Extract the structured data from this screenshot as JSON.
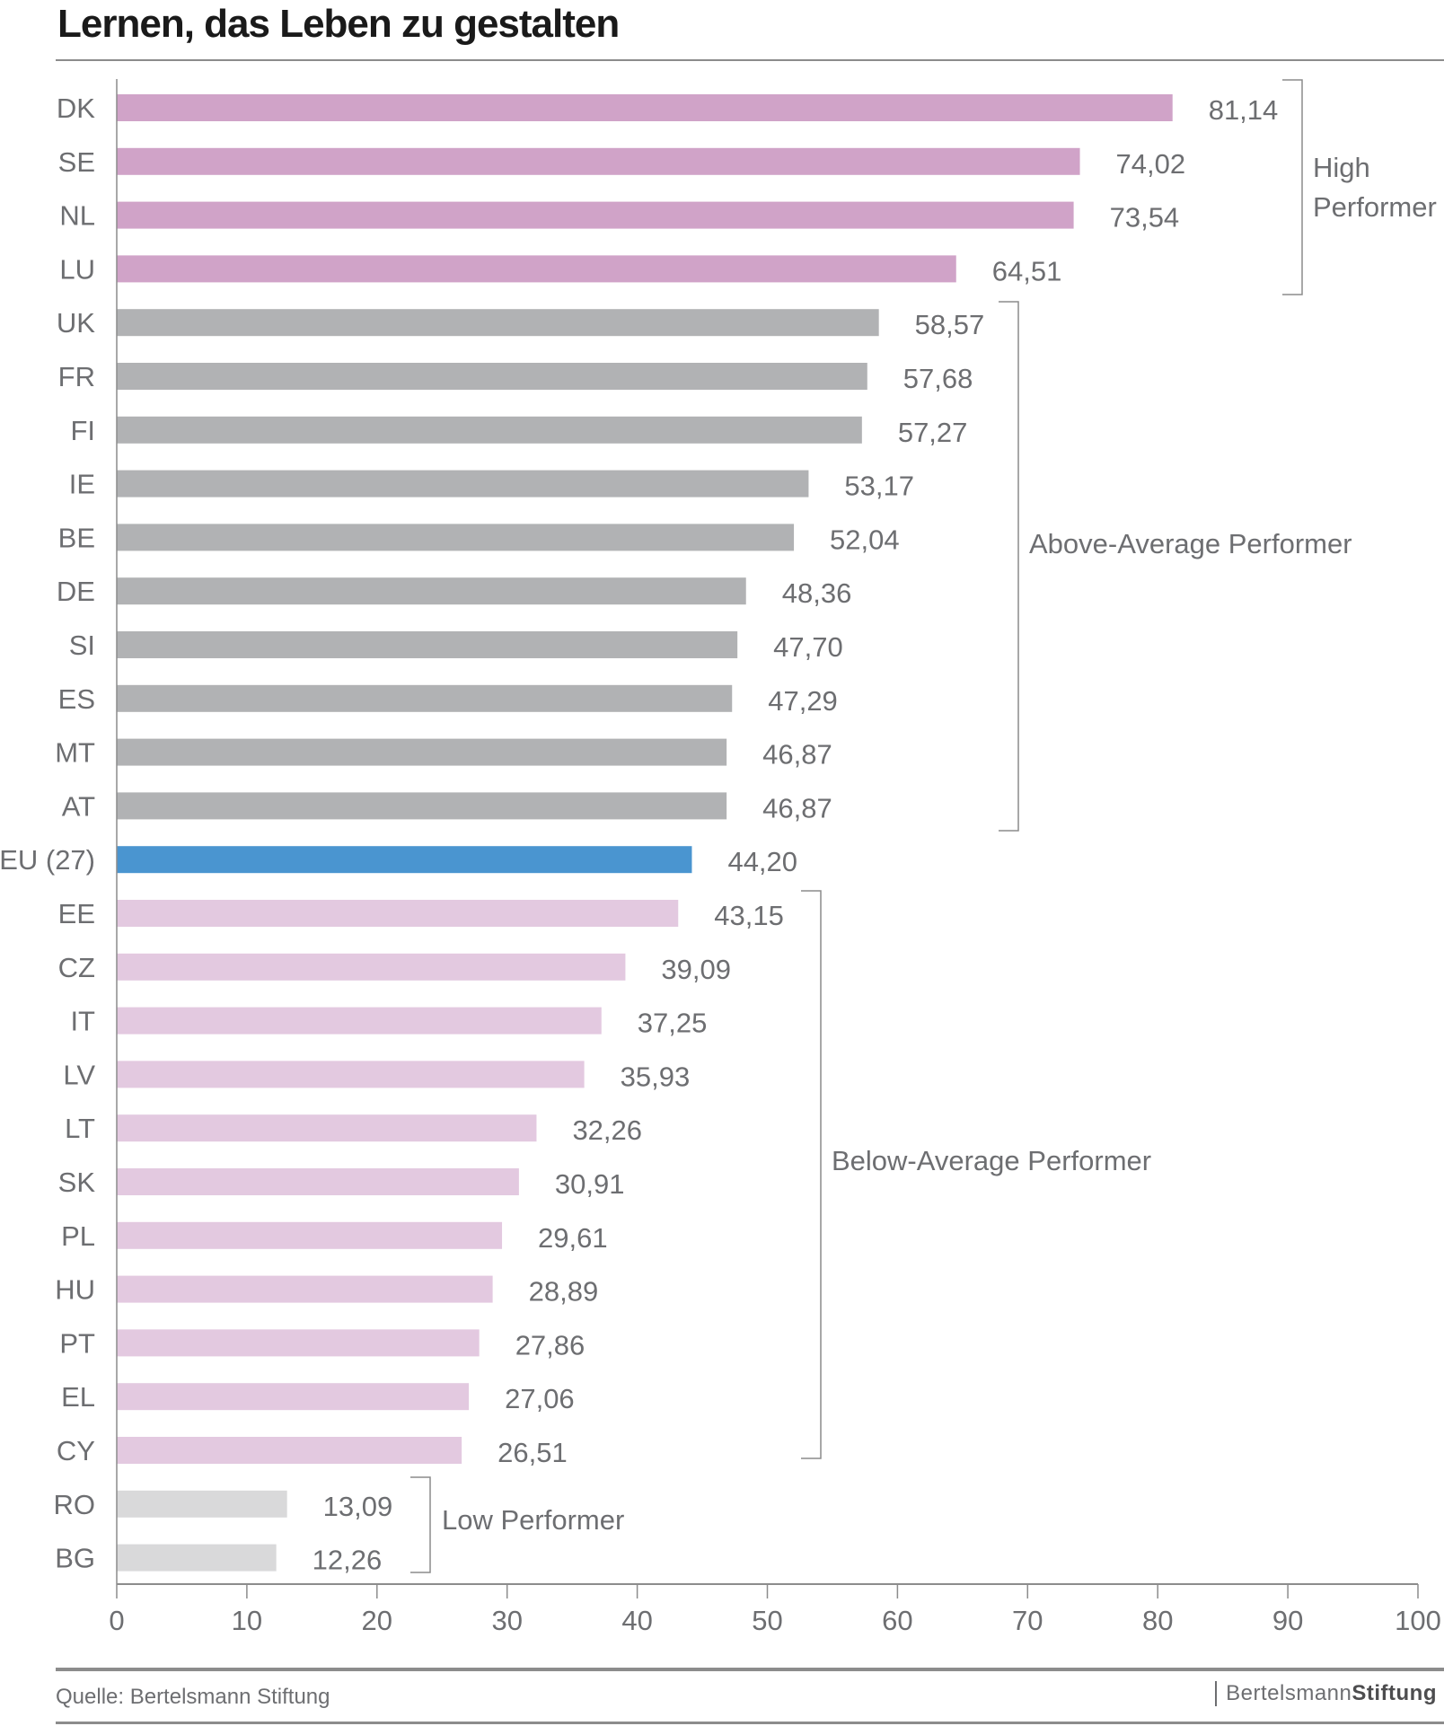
{
  "title": "Lernen, das Leben zu gestalten",
  "source": "Quelle:  Bertelsmann Stiftung",
  "logo": {
    "part1": "Bertelsmann",
    "part2": "Stiftung"
  },
  "chart_data": {
    "type": "bar",
    "orientation": "horizontal",
    "xlim": [
      0,
      100
    ],
    "xticks": [
      0,
      10,
      20,
      30,
      40,
      50,
      60,
      70,
      80,
      90,
      100
    ],
    "grid": false,
    "categories": [
      "DK",
      "SE",
      "NL",
      "LU",
      "UK",
      "FR",
      "FI",
      "IE",
      "BE",
      "DE",
      "SI",
      "ES",
      "MT",
      "AT",
      "EU (27)",
      "EE",
      "CZ",
      "IT",
      "LV",
      "LT",
      "SK",
      "PL",
      "HU",
      "PT",
      "EL",
      "CY",
      "RO",
      "BG"
    ],
    "values": [
      81.14,
      74.02,
      73.54,
      64.51,
      58.57,
      57.68,
      57.27,
      53.17,
      52.04,
      48.36,
      47.7,
      47.29,
      46.87,
      46.87,
      44.2,
      43.15,
      39.09,
      37.25,
      35.93,
      32.26,
      30.91,
      29.61,
      28.89,
      27.86,
      27.06,
      26.51,
      13.09,
      12.26
    ],
    "value_labels": [
      "81,14",
      "74,02",
      "73,54",
      "64,51",
      "58,57",
      "57,68",
      "57,27",
      "53,17",
      "52,04",
      "48,36",
      "47,70",
      "47,29",
      "46,87",
      "46,87",
      "44,20",
      "43,15",
      "39,09",
      "37,25",
      "35,93",
      "32,26",
      "30,91",
      "29,61",
      "28,89",
      "27,86",
      "27,06",
      "26,51",
      "13,09",
      "12,26"
    ],
    "groups": [
      {
        "label": [
          "High",
          "Performer"
        ],
        "from": 0,
        "to": 3,
        "color": "#d0a3c8"
      },
      {
        "label": [
          "Above-Average Performer"
        ],
        "from": 4,
        "to": 13,
        "color": "#b1b2b4"
      },
      {
        "label": [],
        "from": 14,
        "to": 14,
        "color": "#4a95d0"
      },
      {
        "label": [
          "Below-Average Performer"
        ],
        "from": 15,
        "to": 25,
        "color": "#e3c9e0"
      },
      {
        "label": [
          "Low Performer"
        ],
        "from": 26,
        "to": 27,
        "color": "#d9d9da"
      }
    ]
  }
}
